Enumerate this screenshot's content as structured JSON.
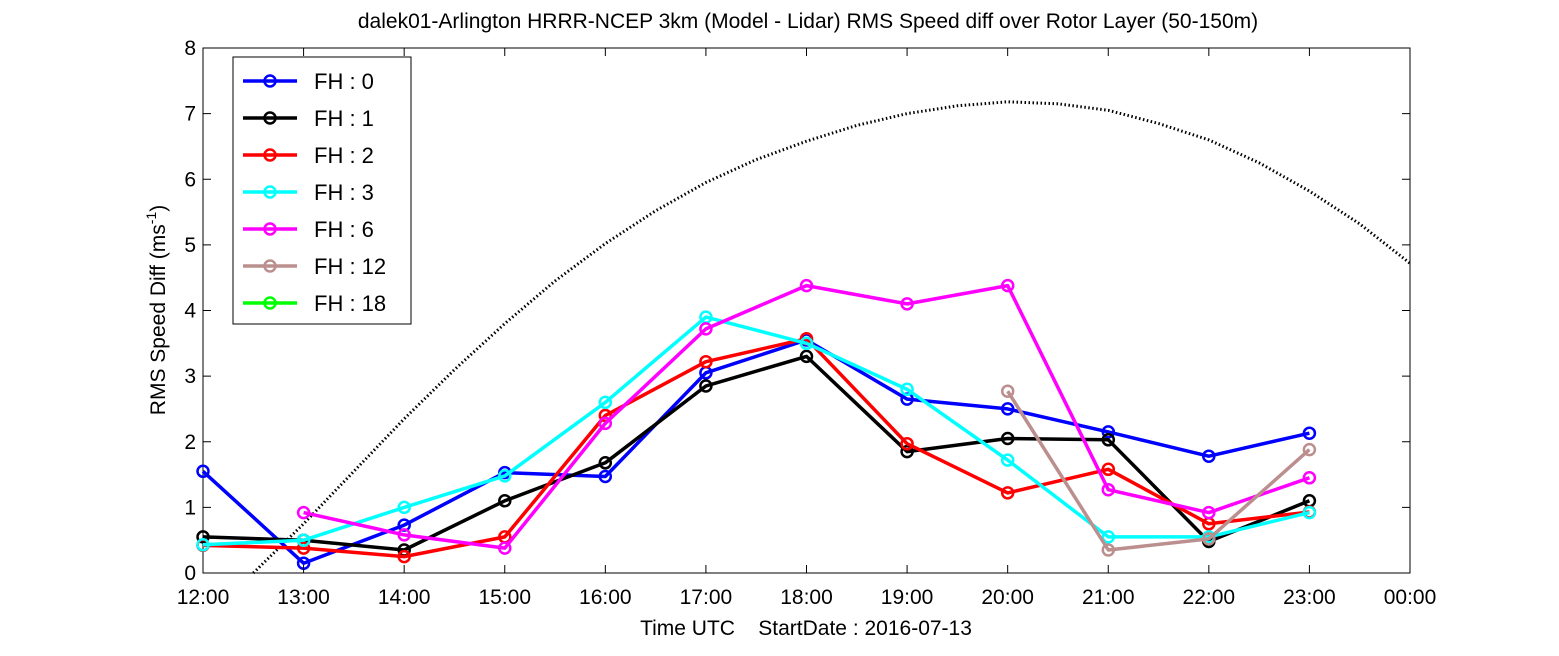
{
  "chart_data": {
    "type": "line",
    "title": "dalek01-Arlington HRRR-NCEP 3km (Model - Lidar) RMS Speed diff over Rotor Layer (50-150m)",
    "xlabel": "Time UTC    StartDate : 2016-07-13",
    "ylabel_main": "RMS Speed Diff (ms",
    "ylabel_sup": "-1",
    "ylabel_close": ")",
    "xlim": [
      12,
      24
    ],
    "ylim": [
      0,
      8
    ],
    "x_ticks": [
      {
        "value": 12,
        "label": "12:00"
      },
      {
        "value": 13,
        "label": "13:00"
      },
      {
        "value": 14,
        "label": "14:00"
      },
      {
        "value": 15,
        "label": "15:00"
      },
      {
        "value": 16,
        "label": "16:00"
      },
      {
        "value": 17,
        "label": "17:00"
      },
      {
        "value": 18,
        "label": "18:00"
      },
      {
        "value": 19,
        "label": "19:00"
      },
      {
        "value": 20,
        "label": "20:00"
      },
      {
        "value": 21,
        "label": "21:00"
      },
      {
        "value": 22,
        "label": "22:00"
      },
      {
        "value": 23,
        "label": "23:00"
      },
      {
        "value": 24,
        "label": "00:00"
      }
    ],
    "y_ticks": [
      {
        "value": 0,
        "label": "0"
      },
      {
        "value": 1,
        "label": "1"
      },
      {
        "value": 2,
        "label": "2"
      },
      {
        "value": 3,
        "label": "3"
      },
      {
        "value": 4,
        "label": "4"
      },
      {
        "value": 5,
        "label": "5"
      },
      {
        "value": 6,
        "label": "6"
      },
      {
        "value": 7,
        "label": "7"
      },
      {
        "value": 8,
        "label": "8"
      }
    ],
    "legend_position": "top-left",
    "grid": false,
    "series": [
      {
        "name": "FH : 0",
        "color": "#0000ff",
        "x": [
          12,
          13,
          14,
          15,
          16,
          17,
          18,
          19,
          20,
          21,
          22,
          23
        ],
        "y": [
          1.55,
          0.15,
          0.73,
          1.53,
          1.47,
          3.05,
          3.55,
          2.65,
          2.5,
          2.15,
          1.78,
          2.13
        ]
      },
      {
        "name": "FH : 1",
        "color": "#000000",
        "x": [
          12,
          13,
          14,
          15,
          16,
          17,
          18,
          19,
          20,
          21,
          22,
          23
        ],
        "y": [
          0.55,
          0.5,
          0.35,
          1.1,
          1.68,
          2.85,
          3.3,
          1.85,
          2.05,
          2.03,
          0.48,
          1.1
        ]
      },
      {
        "name": "FH : 2",
        "color": "#ff0000",
        "x": [
          12,
          13,
          14,
          15,
          16,
          17,
          18,
          19,
          20,
          21,
          22,
          23
        ],
        "y": [
          0.42,
          0.38,
          0.25,
          0.55,
          2.4,
          3.22,
          3.57,
          1.97,
          1.22,
          1.58,
          0.75,
          0.93
        ]
      },
      {
        "name": "FH : 3",
        "color": "#00ffff",
        "x": [
          12,
          13,
          14,
          15,
          16,
          17,
          18,
          19,
          20,
          21,
          22,
          23
        ],
        "y": [
          0.43,
          0.5,
          1.0,
          1.48,
          2.6,
          3.9,
          3.5,
          2.8,
          1.72,
          0.55,
          0.55,
          0.92
        ]
      },
      {
        "name": "FH : 6",
        "color": "#ff00ff",
        "x": [
          13,
          14,
          15,
          16,
          17,
          18,
          19,
          20,
          21,
          22,
          23
        ],
        "y": [
          0.92,
          0.58,
          0.38,
          2.28,
          3.72,
          4.38,
          4.1,
          4.38,
          1.27,
          0.92,
          1.45
        ]
      },
      {
        "name": "FH : 12",
        "color": "#bc8f8f",
        "x": [
          20,
          21,
          22,
          23
        ],
        "y": [
          2.77,
          0.35,
          0.52,
          1.88
        ]
      },
      {
        "name": "FH : 18",
        "color": "#00ff00",
        "x": [],
        "y": []
      }
    ],
    "reference_curve": {
      "style": "dotted",
      "color": "#000000",
      "x": [
        12.5,
        13.0,
        13.5,
        14.0,
        14.5,
        15.0,
        15.5,
        16.0,
        16.5,
        17.0,
        17.5,
        18.0,
        18.5,
        19.0,
        19.5,
        20.0,
        20.5,
        21.0,
        21.5,
        22.0,
        22.5,
        23.0,
        23.5,
        24.0
      ],
      "y": [
        0.0,
        0.75,
        1.55,
        2.35,
        3.1,
        3.8,
        4.45,
        5.02,
        5.52,
        5.95,
        6.3,
        6.58,
        6.82,
        7.0,
        7.12,
        7.18,
        7.15,
        7.05,
        6.85,
        6.6,
        6.25,
        5.82,
        5.32,
        4.72
      ]
    }
  }
}
